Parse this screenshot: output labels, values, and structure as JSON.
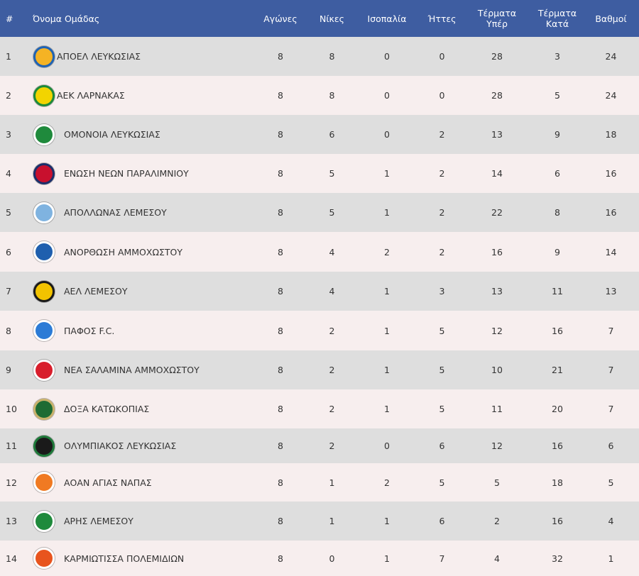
{
  "header": {
    "rank": "#",
    "team": "Όνομα Ομάδας",
    "games": "Αγώνες",
    "wins": "Νίκες",
    "draws": "Ισοπαλία",
    "losses": "Ήττες",
    "goals_for_line1": "Τέρματα",
    "goals_for_line2": "Υπέρ",
    "goals_against_line1": "Τέρματα",
    "goals_against_line2": "Κατά",
    "points": "Βαθμοί"
  },
  "teams": [
    {
      "rank": "1",
      "name": "ΑΠΟΕΛ ΛΕΥΚΩΣΙΑΣ",
      "games": "8",
      "wins": "8",
      "draws": "0",
      "losses": "0",
      "gf": "28",
      "ga": "3",
      "pts": "24",
      "logo": "apoel-crest-icon",
      "color": "#f5b324",
      "accent": "#1f63b5"
    },
    {
      "rank": "2",
      "name": "ΑΕΚ ΛΑΡΝΑΚΑΣ",
      "games": "8",
      "wins": "8",
      "draws": "0",
      "losses": "0",
      "gf": "28",
      "ga": "5",
      "pts": "24",
      "logo": "aek-larnaca-crest-icon",
      "color": "#f2d400",
      "accent": "#1c8a3a"
    },
    {
      "rank": "3",
      "name": "ΟΜΟΝΟΙΑ ΛΕΥΚΩΣΙΑΣ",
      "games": "8",
      "wins": "6",
      "draws": "0",
      "losses": "2",
      "gf": "13",
      "ga": "9",
      "pts": "18",
      "logo": "omonoia-crest-icon",
      "color": "#1f8a3c",
      "accent": "#ffffff"
    },
    {
      "rank": "4",
      "name": "ΕΝΩΣΗ ΝΕΩΝ ΠΑΡΑΛΙΜΝΙΟΥ",
      "games": "8",
      "wins": "5",
      "draws": "1",
      "losses": "2",
      "gf": "14",
      "ga": "6",
      "pts": "16",
      "logo": "enp-crest-icon",
      "color": "#c8102e",
      "accent": "#1b2f6b"
    },
    {
      "rank": "5",
      "name": "ΑΠΟΛΛΩΝΑΣ ΛΕΜΕΣΟΥ",
      "games": "8",
      "wins": "5",
      "draws": "1",
      "losses": "2",
      "gf": "22",
      "ga": "8",
      "pts": "16",
      "logo": "apollon-crest-icon",
      "color": "#7fb3e0",
      "accent": "#ffffff"
    },
    {
      "rank": "6",
      "name": "ΑΝΟΡΘΩΣΗ ΑΜΜΟΧΩΣΤΟΥ",
      "games": "8",
      "wins": "4",
      "draws": "2",
      "losses": "2",
      "gf": "16",
      "ga": "9",
      "pts": "14",
      "logo": "anorthosis-crest-icon",
      "color": "#1f5fae",
      "accent": "#ffffff"
    },
    {
      "rank": "7",
      "name": "ΑΕΛ ΛΕΜΕΣΟΥ",
      "games": "8",
      "wins": "4",
      "draws": "1",
      "losses": "3",
      "gf": "13",
      "ga": "11",
      "pts": "13",
      "logo": "ael-crest-icon",
      "color": "#f2c300",
      "accent": "#1a1a1a"
    },
    {
      "rank": "8",
      "name": "ΠΑΦΟΣ F.C.",
      "games": "8",
      "wins": "2",
      "draws": "1",
      "losses": "5",
      "gf": "12",
      "ga": "16",
      "pts": "7",
      "logo": "pafos-crest-icon",
      "color": "#2b7bd6",
      "accent": "#ffffff"
    },
    {
      "rank": "9",
      "name": "ΝΕΑ ΣΑΛΑΜΙΝΑ ΑΜΜΟΧΩΣΤΟΥ",
      "games": "8",
      "wins": "2",
      "draws": "1",
      "losses": "5",
      "gf": "10",
      "ga": "21",
      "pts": "7",
      "logo": "nea-salamina-crest-icon",
      "color": "#d81e2c",
      "accent": "#ffffff"
    },
    {
      "rank": "10",
      "name": "ΔΟΞΑ ΚΑΤΩΚΟΠΙΑΣ",
      "games": "8",
      "wins": "2",
      "draws": "1",
      "losses": "5",
      "gf": "11",
      "ga": "20",
      "pts": "7",
      "logo": "doxa-crest-icon",
      "color": "#1e6b33",
      "accent": "#c9b26b"
    },
    {
      "rank": "11",
      "name": "ΟΛΥΜΠΙΑΚΟΣ ΛΕΥΚΩΣΙΑΣ",
      "games": "8",
      "wins": "2",
      "draws": "0",
      "losses": "6",
      "gf": "12",
      "ga": "16",
      "pts": "6",
      "logo": "olympiakos-nicosia-crest-icon",
      "color": "#1a1a1a",
      "accent": "#1e7a3a"
    },
    {
      "rank": "12",
      "name": "ΑΟΑΝ ΑΓΙΑΣ ΝΑΠΑΣ",
      "games": "8",
      "wins": "1",
      "draws": "2",
      "losses": "5",
      "gf": "5",
      "ga": "18",
      "pts": "5",
      "logo": "aoan-crest-icon",
      "color": "#f07a22",
      "accent": "#ffffff"
    },
    {
      "rank": "13",
      "name": "ΑΡΗΣ ΛΕΜΕΣΟΥ",
      "games": "8",
      "wins": "1",
      "draws": "1",
      "losses": "6",
      "gf": "2",
      "ga": "16",
      "pts": "4",
      "logo": "aris-crest-icon",
      "color": "#1f8a3c",
      "accent": "#ffffff"
    },
    {
      "rank": "14",
      "name": "ΚΑΡΜΙΩΤΙΣΣΑ ΠΟΛΕΜΙΔΙΩΝ",
      "games": "8",
      "wins": "0",
      "draws": "1",
      "losses": "7",
      "gf": "4",
      "ga": "32",
      "pts": "1",
      "logo": "karmiotissa-crest-icon",
      "color": "#e8541e",
      "accent": "#ffffff"
    }
  ]
}
